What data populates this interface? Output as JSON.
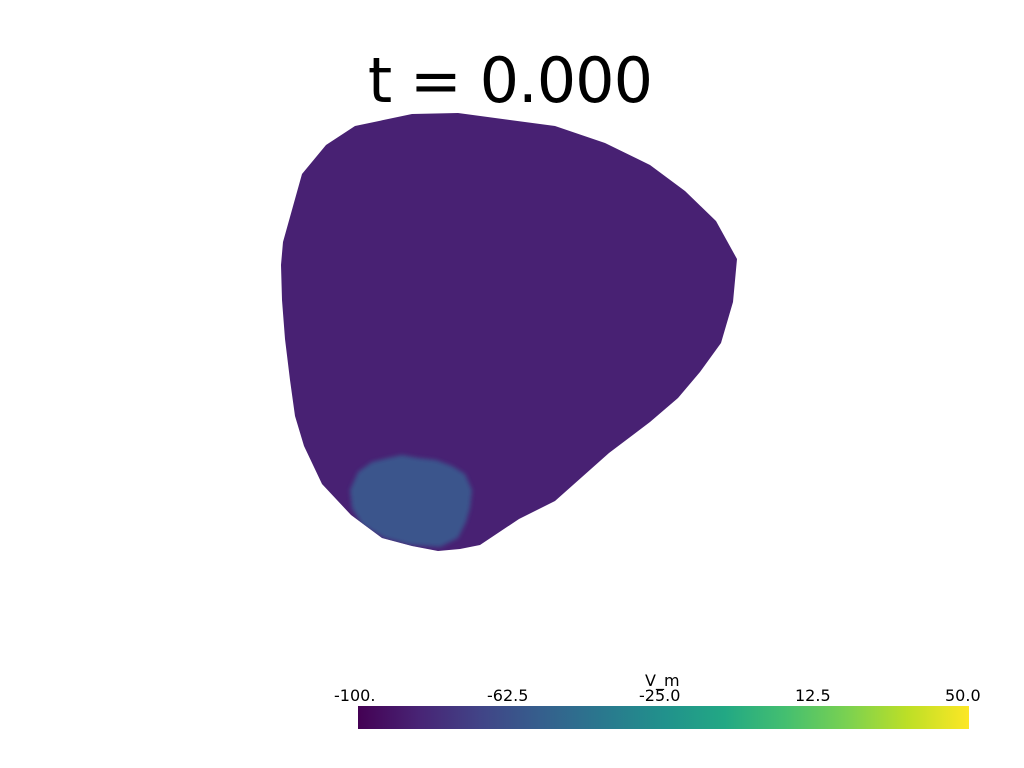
{
  "title": "t = 0.000",
  "scalar_bar": {
    "title": "V_m",
    "ticks": [
      "-100.",
      "-62.5",
      "-25.0",
      "12.5",
      "50.0"
    ],
    "colormap": "viridis",
    "range": [
      -100,
      50
    ]
  },
  "colors": {
    "tissue_resting": "#482173",
    "stimulus_region": "#3a548c",
    "background": "#ffffff"
  }
}
